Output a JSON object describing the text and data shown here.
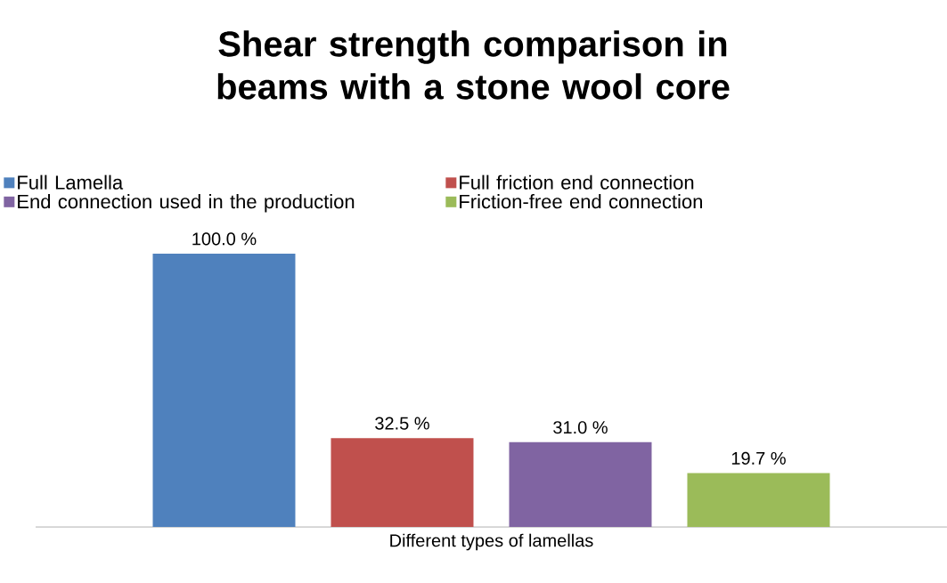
{
  "chart_data": {
    "type": "bar",
    "title": "Shear strength comparison in beams with a stone wool core",
    "xlabel": "Different types of lamellas",
    "categories": [
      null
    ],
    "legend": "top",
    "series": [
      {
        "name": "Full Lamella",
        "color": "#4f81bd",
        "values": [
          100.0
        ],
        "value_labels": [
          "100.0 %"
        ]
      },
      {
        "name": "Full friction end connection",
        "color": "#c0504d",
        "values": [
          32.5
        ],
        "value_labels": [
          "32.5 %"
        ]
      },
      {
        "name": "End connection used in the production",
        "color": "#8064a2",
        "values": [
          31.0
        ],
        "value_labels": [
          "31.0 %"
        ]
      },
      {
        "name": "Friction-free end connection",
        "color": "#9bbb59",
        "values": [
          19.7
        ],
        "value_labels": [
          "19.7 %"
        ]
      }
    ]
  }
}
